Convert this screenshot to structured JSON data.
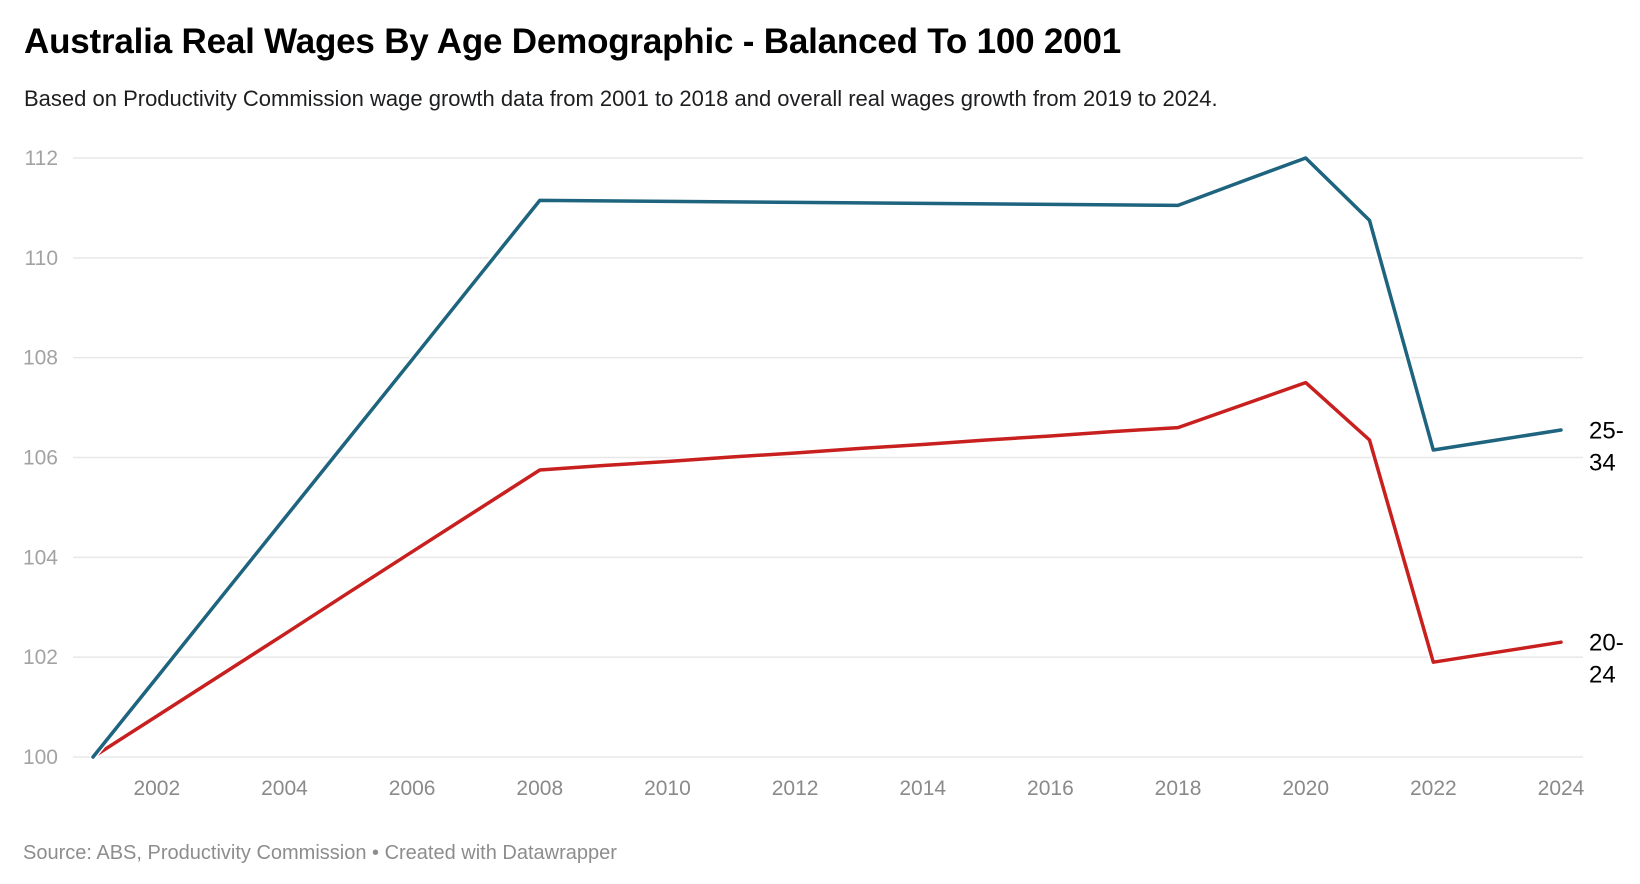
{
  "header": {
    "title": "Australia Real Wages By Age Demographic - Balanced To 100 2001",
    "subtitle": "Based on Productivity Commission wage growth data from 2001 to 2018 and overall real wages growth from 2019 to 2024."
  },
  "footer": {
    "text": "Source: ABS, Productivity Commission • Created with Datawrapper"
  },
  "colors": {
    "series_25_34": "#1e647f",
    "series_20_24": "#c8201f",
    "grid": "#e8e8e8",
    "y_axis_label": "#a3a3a3",
    "x_axis_label": "#8a8a8a",
    "end_label": "#000000",
    "background": "#ffffff"
  },
  "chart_data": {
    "type": "line",
    "title": "Australia Real Wages By Age Demographic - Balanced To 100 2001",
    "subtitle": "Based on Productivity Commission wage growth data from 2001 to 2018 and overall real wages growth from 2019 to 2024.",
    "xlabel": "",
    "ylabel": "",
    "xlim": [
      2001,
      2024
    ],
    "ylim": [
      100,
      112
    ],
    "grid": "horizontal",
    "legend_position": "direct-right-of-line-ends",
    "x": [
      2001,
      2002,
      2003,
      2004,
      2005,
      2006,
      2007,
      2008,
      2009,
      2010,
      2011,
      2012,
      2013,
      2014,
      2015,
      2016,
      2017,
      2018,
      2019,
      2020,
      2021,
      2022,
      2023,
      2024
    ],
    "xticks": [
      2002,
      2004,
      2006,
      2008,
      2010,
      2012,
      2014,
      2016,
      2018,
      2020,
      2022,
      2024
    ],
    "yticks": [
      100,
      102,
      104,
      106,
      108,
      110,
      112
    ],
    "series": [
      {
        "name": "25-34",
        "label_lines": [
          "25-",
          "34"
        ],
        "color": "#1e647f",
        "values": [
          100,
          101.59,
          103.19,
          104.78,
          106.37,
          107.96,
          109.56,
          111.15,
          111.14,
          111.13,
          111.12,
          111.11,
          111.1,
          111.09,
          111.08,
          111.07,
          111.06,
          111.05,
          111.53,
          112,
          110.75,
          106.15,
          106.35,
          106.55
        ]
      },
      {
        "name": "20-24",
        "label_lines": [
          "20-",
          "24"
        ],
        "color": "#c8201f",
        "values": [
          100,
          100.82,
          101.64,
          102.46,
          103.29,
          104.11,
          104.93,
          105.75,
          105.84,
          105.92,
          106.01,
          106.09,
          106.18,
          106.26,
          106.35,
          106.43,
          106.52,
          106.6,
          107.05,
          107.5,
          106.35,
          101.9,
          102.1,
          102.3
        ]
      }
    ]
  }
}
